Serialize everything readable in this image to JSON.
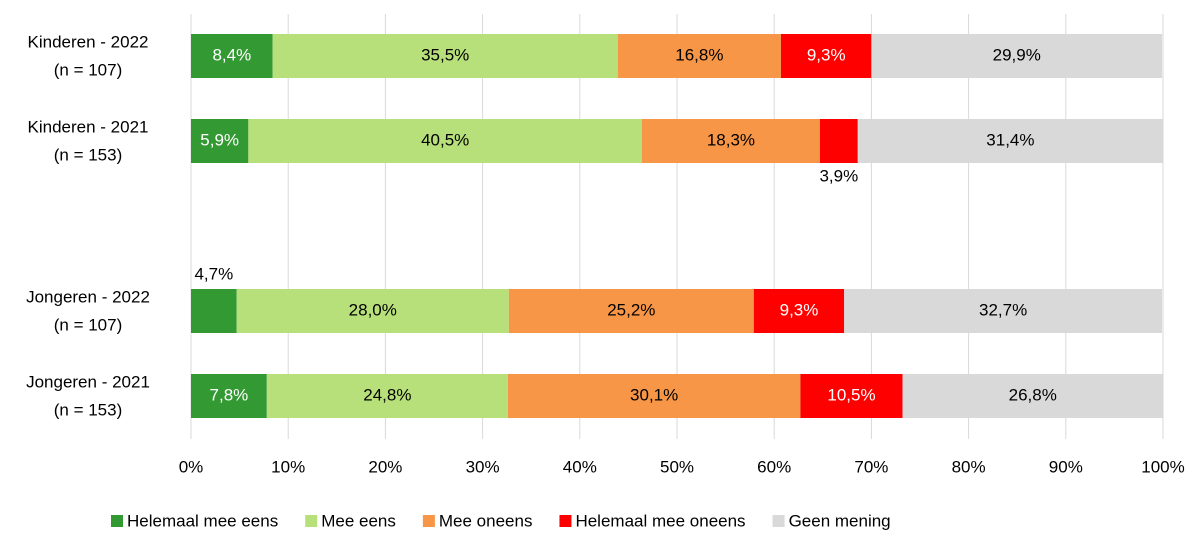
{
  "chart_data": {
    "type": "stacked-barh",
    "categories": [
      [
        "Kinderen - 2022",
        "(n = 107)"
      ],
      [
        "Kinderen - 2021",
        "(n = 153)"
      ],
      null,
      [
        "Jongeren - 2022",
        "(n = 107)"
      ],
      [
        "Jongeren - 2021",
        "(n = 153)"
      ]
    ],
    "series": [
      {
        "name": "Helemaal mee eens",
        "color": "#339933",
        "values": [
          8.4,
          5.9,
          null,
          4.7,
          7.8
        ],
        "value_labels": [
          "8,4%",
          "5,9%",
          null,
          "4,7%",
          "7,8%"
        ]
      },
      {
        "name": "Mee eens",
        "color": "#b8e07a",
        "values": [
          35.5,
          40.5,
          null,
          28.0,
          24.8
        ],
        "value_labels": [
          "35,5%",
          "40,5%",
          null,
          "28,0%",
          "24,8%"
        ]
      },
      {
        "name": "Mee oneens",
        "color": "#f79646",
        "values": [
          16.8,
          18.3,
          null,
          25.2,
          30.1
        ],
        "value_labels": [
          "16,8%",
          "18,3%",
          null,
          "25,2%",
          "30,1%"
        ]
      },
      {
        "name": "Helemaal mee oneens",
        "color": "#ff0000",
        "values": [
          9.3,
          3.9,
          null,
          9.3,
          10.5
        ],
        "value_labels": [
          "9,3%",
          "3,9%",
          null,
          "9,3%",
          "10,5%"
        ]
      },
      {
        "name": "Geen mening",
        "color": "#d9d9d9",
        "values": [
          29.9,
          31.4,
          null,
          32.7,
          26.8
        ],
        "value_labels": [
          "29,9%",
          "31,4%",
          null,
          "32,7%",
          "26,8%"
        ]
      }
    ],
    "xlim": [
      0,
      100
    ],
    "xticks": [
      {
        "value": 0,
        "label": "0%"
      },
      {
        "value": 10,
        "label": "10%"
      },
      {
        "value": 20,
        "label": "20%"
      },
      {
        "value": 30,
        "label": "30%"
      },
      {
        "value": 40,
        "label": "40%"
      },
      {
        "value": 50,
        "label": "50%"
      },
      {
        "value": 60,
        "label": "60%"
      },
      {
        "value": 70,
        "label": "70%"
      },
      {
        "value": 80,
        "label": "80%"
      },
      {
        "value": 90,
        "label": "90%"
      },
      {
        "value": 100,
        "label": "100%"
      }
    ],
    "grid": true,
    "legend": "bottom"
  }
}
